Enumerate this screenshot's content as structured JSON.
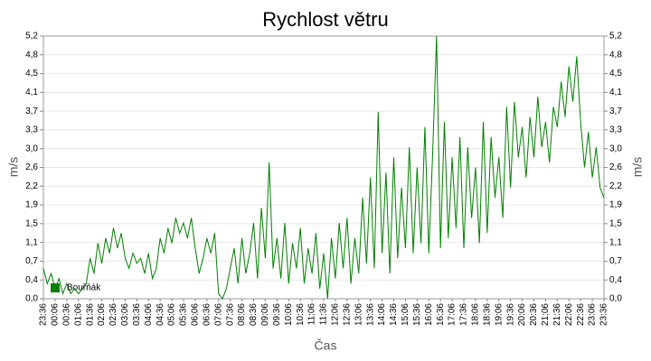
{
  "chart_data": {
    "type": "line",
    "title": "Rychlost větru",
    "x_label": "Čas",
    "y_label": "m/s",
    "y2_label": "m/s",
    "categories": [
      "23:36",
      null,
      null,
      "00:06",
      null,
      null,
      "00:36",
      null,
      null,
      "01:06",
      null,
      null,
      "01:36",
      null,
      null,
      "02:06",
      null,
      null,
      "02:36",
      null,
      null,
      "03:06",
      null,
      null,
      "03:36",
      null,
      null,
      "04:06",
      null,
      null,
      "04:36",
      null,
      null,
      "05:06",
      null,
      null,
      "05:36",
      null,
      null,
      "06:06",
      null,
      null,
      "06:36",
      null,
      null,
      "07:06",
      null,
      null,
      "07:36",
      null,
      null,
      "08:06",
      null,
      null,
      "08:36",
      null,
      null,
      "09:06",
      null,
      null,
      "09:36",
      null,
      null,
      "10:06",
      null,
      null,
      "10:36",
      null,
      null,
      "11:06",
      null,
      null,
      "11:36",
      null,
      null,
      "12:06",
      null,
      null,
      "12:36",
      null,
      null,
      "13:06",
      null,
      null,
      "13:36",
      null,
      null,
      "14:06",
      null,
      null,
      "14:36",
      null,
      null,
      "15:06",
      null,
      null,
      "15:36",
      null,
      null,
      "16:06",
      null,
      null,
      "16:36",
      null,
      null,
      "17:06",
      null,
      null,
      "17:36",
      null,
      null,
      "18:06",
      null,
      null,
      "18:36",
      null,
      null,
      "19:06",
      null,
      null,
      "19:36",
      null,
      null,
      "20:06",
      null,
      null,
      "20:36",
      null,
      null,
      "21:06",
      null,
      null,
      "21:36",
      null,
      null,
      "22:06",
      null,
      null,
      "22:36",
      null,
      null,
      "23:06",
      null,
      null,
      "23:36"
    ],
    "series": [
      {
        "name": "Bouřňák",
        "color": "#008000",
        "values": [
          0.6,
          0.3,
          0.5,
          0.2,
          0.4,
          0.1,
          0.3,
          0.1,
          0.2,
          0.1,
          0.2,
          0.3,
          0.8,
          0.5,
          1.1,
          0.7,
          1.2,
          0.9,
          1.4,
          1.0,
          1.3,
          0.8,
          0.6,
          0.9,
          0.7,
          0.8,
          0.5,
          0.9,
          0.4,
          0.6,
          1.2,
          0.9,
          1.4,
          1.1,
          1.6,
          1.3,
          1.5,
          1.2,
          1.6,
          1.0,
          0.5,
          0.8,
          1.2,
          0.9,
          1.3,
          0.1,
          0.0,
          0.2,
          0.6,
          1.0,
          0.3,
          1.2,
          0.5,
          0.9,
          1.5,
          0.4,
          1.8,
          0.8,
          2.7,
          0.6,
          1.2,
          0.4,
          1.5,
          0.3,
          1.1,
          0.6,
          1.4,
          0.3,
          1.0,
          0.5,
          1.3,
          0.2,
          0.9,
          0.0,
          1.2,
          0.4,
          1.5,
          0.6,
          1.6,
          0.3,
          1.2,
          0.5,
          2.0,
          0.7,
          2.4,
          0.6,
          3.7,
          0.9,
          2.5,
          0.5,
          2.8,
          0.8,
          2.2,
          1.0,
          3.0,
          0.9,
          2.6,
          1.1,
          3.4,
          0.9,
          2.9,
          5.2,
          1.0,
          3.5,
          1.2,
          2.8,
          1.4,
          3.2,
          1.0,
          3.0,
          1.6,
          2.6,
          1.1,
          3.5,
          1.3,
          3.2,
          2.0,
          2.8,
          1.6,
          3.8,
          2.2,
          3.9,
          2.8,
          3.4,
          2.4,
          3.6,
          2.8,
          4.0,
          3.0,
          3.5,
          2.7,
          3.8,
          3.4,
          4.3,
          3.6,
          4.6,
          3.9,
          4.8,
          3.5,
          2.6,
          3.3,
          2.4,
          3.0,
          2.2,
          2.0
        ]
      }
    ],
    "ylim": [
      0,
      5.2
    ],
    "yticks": [
      {
        "value": 0,
        "label": "0,0"
      },
      {
        "value": 0.371,
        "label": "0,4"
      },
      {
        "value": 0.743,
        "label": "0,7"
      },
      {
        "value": 1.114,
        "label": "1,1"
      },
      {
        "value": 1.486,
        "label": "1,5"
      },
      {
        "value": 1.857,
        "label": "1,9"
      },
      {
        "value": 2.229,
        "label": "2,2"
      },
      {
        "value": 2.6,
        "label": "2,6"
      },
      {
        "value": 2.971,
        "label": "3,0"
      },
      {
        "value": 3.343,
        "label": "3,3"
      },
      {
        "value": 3.714,
        "label": "3,7"
      },
      {
        "value": 4.086,
        "label": "4,1"
      },
      {
        "value": 4.457,
        "label": "4,5"
      },
      {
        "value": 4.829,
        "label": "4,8"
      },
      {
        "value": 5.2,
        "label": "5,2"
      }
    ],
    "grid": true,
    "legend": "bottom-left"
  }
}
